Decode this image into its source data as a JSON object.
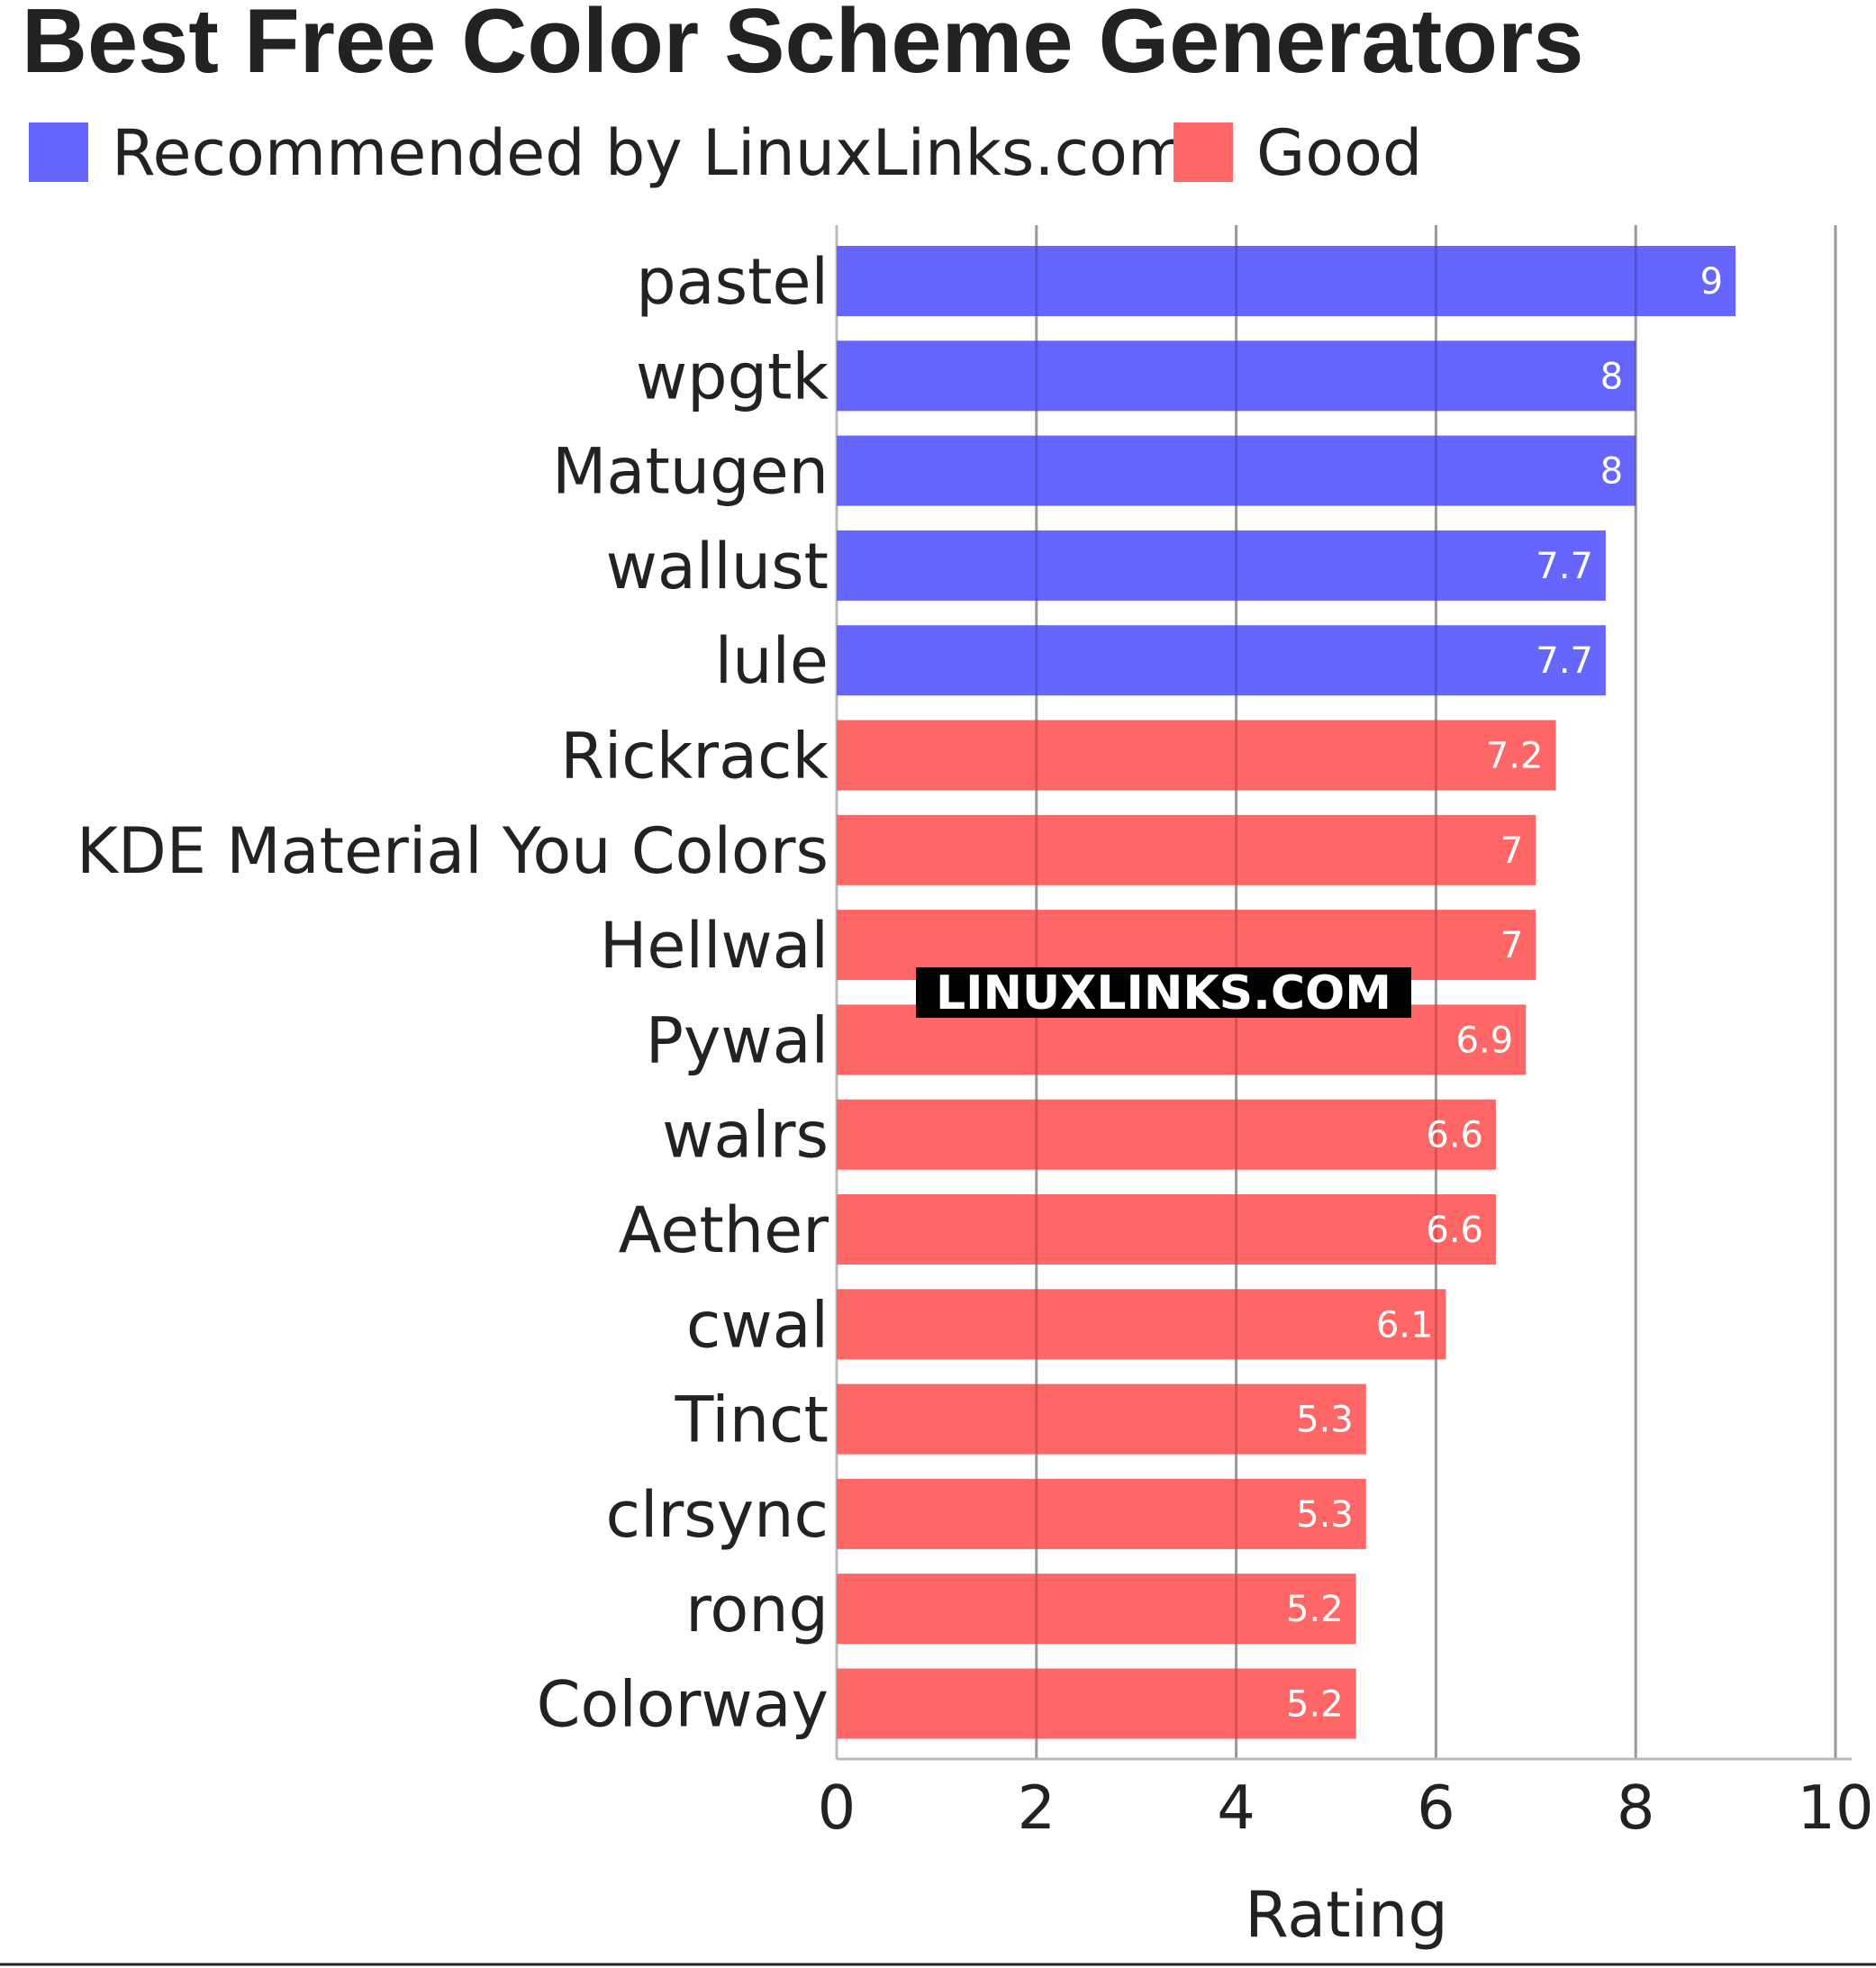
{
  "chart_data": {
    "type": "bar",
    "orientation": "horizontal",
    "title": "Best Free Color Scheme Generators",
    "xlabel": "Rating",
    "ylabel": "",
    "xlim": [
      0,
      10
    ],
    "xticks": [
      "0",
      "2",
      "4",
      "6",
      "8",
      "10"
    ],
    "grid": true,
    "legend_position": "top-left",
    "legend": [
      {
        "label": "Recommended by LinuxLinks.com",
        "color": "#6666ff"
      },
      {
        "label": "Good",
        "color": "#ff6666"
      }
    ],
    "categories": [
      "pastel",
      "wpgtk",
      "Matugen",
      "wallust",
      "lule",
      "Rickrack",
      "KDE Material You Colors",
      "Hellwal",
      "Pywal",
      "walrs",
      "Aether",
      "cwal",
      "Tinct",
      "clrsync",
      "rong",
      "Colorway"
    ],
    "values": [
      9,
      8,
      8,
      7.7,
      7.7,
      7.2,
      7,
      7,
      6.9,
      6.6,
      6.6,
      6.1,
      5.3,
      5.3,
      5.2,
      5.2
    ],
    "value_labels": [
      "9",
      "8",
      "8",
      "7.7",
      "7.7",
      "7.2",
      "7",
      "7",
      "6.9",
      "6.6",
      "6.6",
      "6.1",
      "5.3",
      "5.3",
      "5.2",
      "5.2"
    ],
    "groups": [
      "Recommended by LinuxLinks.com",
      "Recommended by LinuxLinks.com",
      "Recommended by LinuxLinks.com",
      "Recommended by LinuxLinks.com",
      "Recommended by LinuxLinks.com",
      "Good",
      "Good",
      "Good",
      "Good",
      "Good",
      "Good",
      "Good",
      "Good",
      "Good",
      "Good",
      "Good"
    ],
    "watermark": "LINUXLINKS.COM"
  },
  "colors": {
    "recommended": "#6666ff",
    "good": "#ff6666",
    "gridline": "#bbbbbb",
    "text": "#222222"
  }
}
